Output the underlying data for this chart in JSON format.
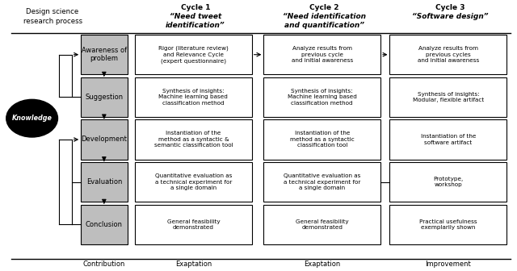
{
  "background_color": "#ffffff",
  "left_column_labels": [
    "Awareness of\nproblem",
    "Suggestion",
    "Development",
    "Evaluation",
    "Conclusion"
  ],
  "header_labels": [
    "Design science\nresearch process",
    "Cycle 1\n“Need tweet\nidentification”",
    "Cycle 2\n“Need identification\nand quantification”",
    "Cycle 3\n“Software design”"
  ],
  "cycle1_cells": [
    "Rigor (literature review)\nand Relevance Cycle\n(expert questionnaire)",
    "Synthesis of insights:\nMachine learning based\nclassification method",
    "Instantiation of the\nmethod as a syntactic &\nsemantic classification tool",
    "Quantitative evaluation as\na technical experiment for\na single domain",
    "General feasibility\ndemonstrated"
  ],
  "cycle2_cells": [
    "Analyze results from\nprevious cycle\nand initial awareness",
    "Synthesis of insights:\nMachine learning based\nclassification method",
    "Instantiation of the\nmethod as a syntactic\nclassification tool",
    "Quantitative evaluation as\na technical experiment for\na single domain",
    "General feasibility\ndemonstrated"
  ],
  "cycle3_cells": [
    "Analyze results from\nprevious cycles\nand initial awareness",
    "Synthesis of insights:\nModular, flexible artifact",
    "Instantiation of the\nsoftware artifact",
    "Prototype,\nworkshop",
    "Practical usefulness\nexemplarily shown"
  ],
  "footer_labels": [
    "Contribution",
    "Exaptation",
    "Exaptation",
    "Improvement"
  ],
  "knowledge_label": "Knowledge"
}
